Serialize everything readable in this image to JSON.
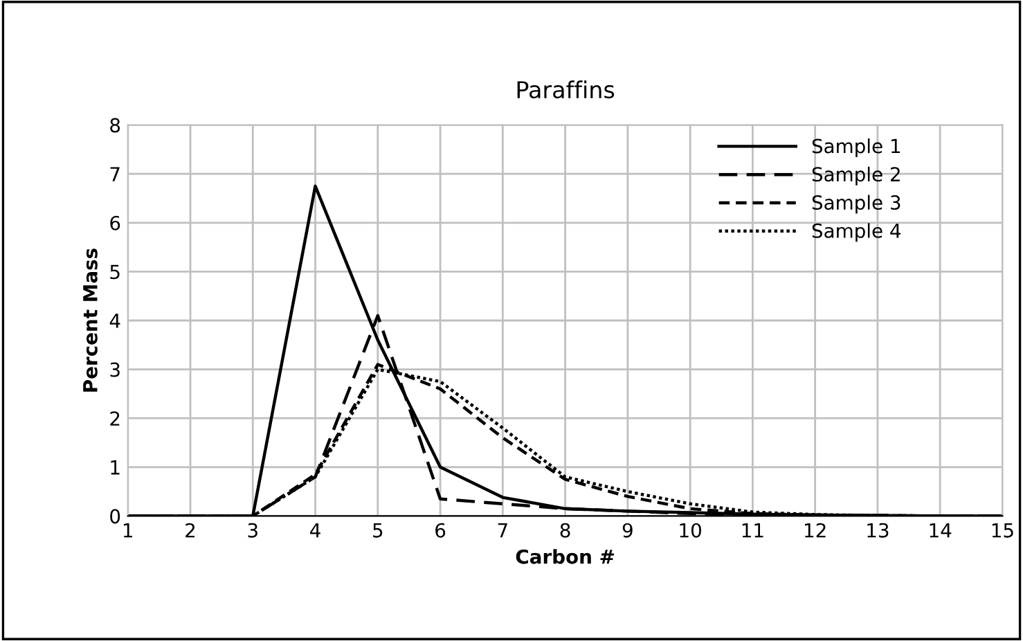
{
  "chart_data": {
    "type": "line",
    "title": "Paraffins",
    "xlabel": "Carbon #",
    "ylabel": "Percent Mass",
    "x": [
      1,
      2,
      3,
      4,
      5,
      6,
      7,
      8,
      9,
      10,
      11,
      12,
      13,
      14,
      15
    ],
    "xlim": [
      1,
      15
    ],
    "xticks": [
      1,
      2,
      3,
      4,
      5,
      6,
      7,
      8,
      9,
      10,
      11,
      12,
      13,
      14,
      15
    ],
    "ylim": [
      0,
      8
    ],
    "yticks": [
      0,
      1,
      2,
      3,
      4,
      5,
      6,
      7,
      8
    ],
    "grid": true,
    "legend": "top right",
    "marker": "none",
    "series": [
      {
        "name": "Sample 1",
        "color": "#000000",
        "line_style": "solid",
        "values": [
          0,
          0,
          0,
          6.75,
          3.6,
          1.0,
          0.38,
          0.15,
          0.1,
          0.07,
          0.04,
          0.02,
          0.01,
          0,
          0
        ]
      },
      {
        "name": "Sample 2",
        "color": "#000000",
        "line_style": "dashed",
        "values": [
          0,
          0,
          0,
          0.8,
          4.1,
          0.35,
          0.25,
          0.15,
          0.1,
          0.05,
          0.03,
          0.02,
          0.01,
          0,
          0
        ]
      },
      {
        "name": "Sample 3",
        "color": "#000000",
        "line_style": "dashed",
        "values": [
          0,
          0,
          0,
          0.85,
          3.1,
          2.6,
          1.6,
          0.75,
          0.4,
          0.15,
          0.05,
          0.02,
          0.01,
          0,
          0
        ]
      },
      {
        "name": "Sample 4",
        "color": "#000000",
        "line_style": "dotted",
        "values": [
          0,
          0,
          0,
          0.8,
          3.0,
          2.75,
          1.8,
          0.8,
          0.5,
          0.25,
          0.08,
          0.03,
          0.01,
          0,
          0
        ]
      }
    ]
  }
}
